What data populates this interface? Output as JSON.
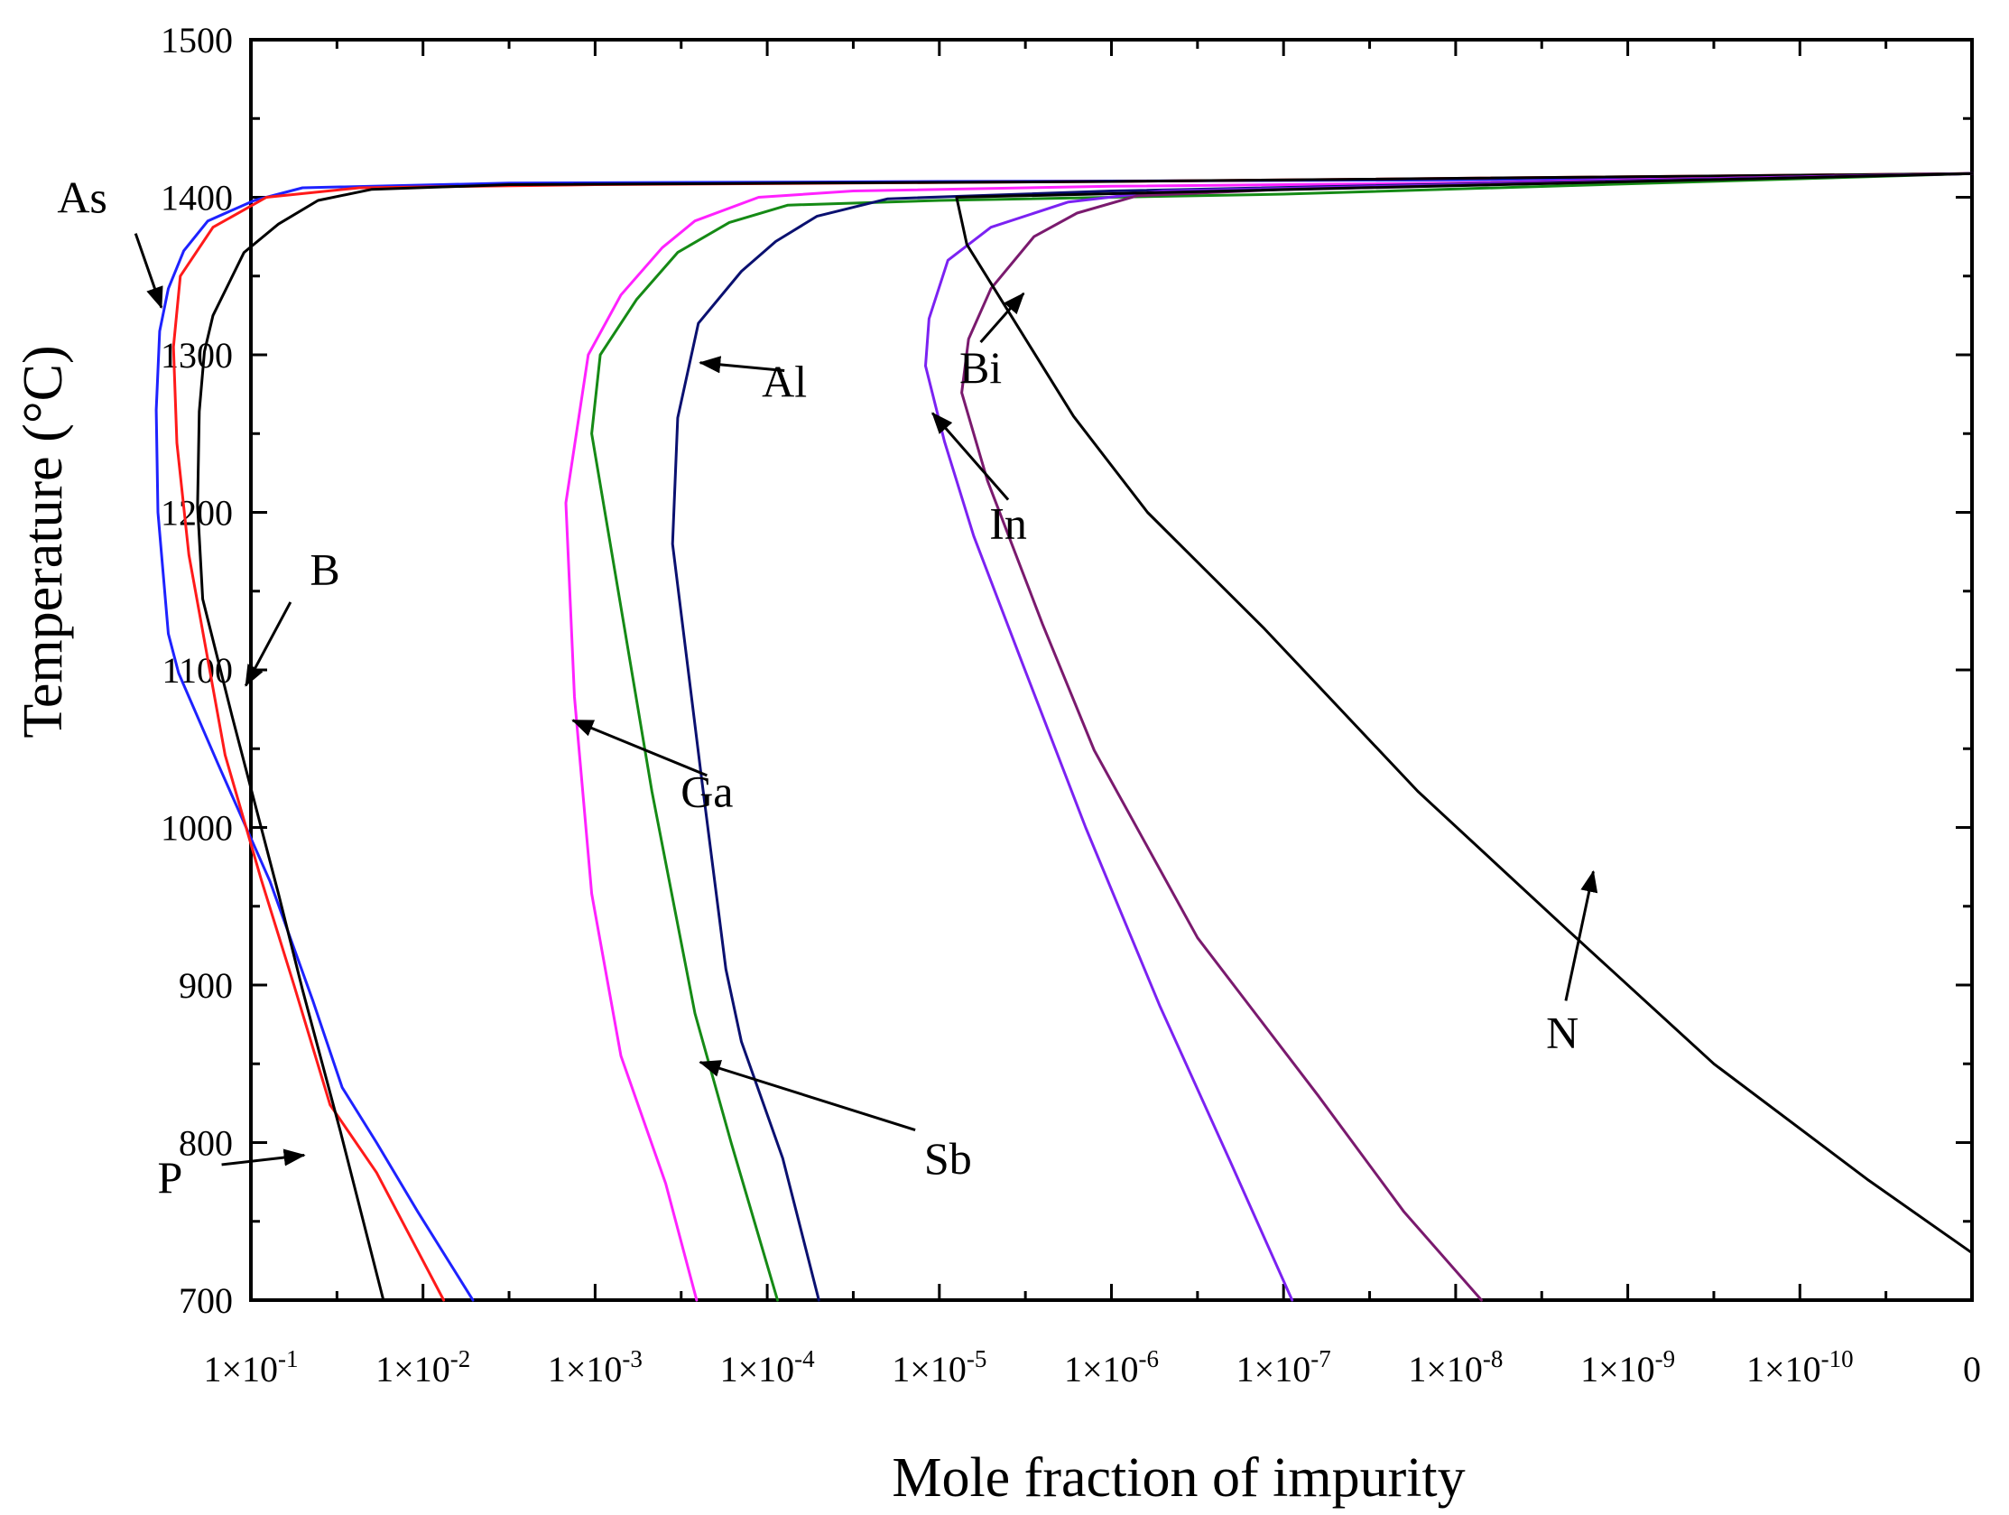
{
  "chart_data": {
    "type": "line",
    "title": "",
    "xlabel": "Mole fraction of impurity",
    "ylabel": "Temperature (°C)",
    "ylim": [
      700,
      1500
    ],
    "y_ticks": [
      700,
      800,
      900,
      1000,
      1100,
      1200,
      1300,
      1400,
      1500
    ],
    "x_scale": "log, reversed (decade index 1 = 1x10^-1 ... 10 = 1x10^-10, 11 = 0)",
    "x_ticks": [
      {
        "pos": 1,
        "mant": "1×10",
        "exp": "-1"
      },
      {
        "pos": 2,
        "mant": "1×10",
        "exp": "-2"
      },
      {
        "pos": 3,
        "mant": "1×10",
        "exp": "-3"
      },
      {
        "pos": 4,
        "mant": "1×10",
        "exp": "-4"
      },
      {
        "pos": 5,
        "mant": "1×10",
        "exp": "-5"
      },
      {
        "pos": 6,
        "mant": "1×10",
        "exp": "-6"
      },
      {
        "pos": 7,
        "mant": "1×10",
        "exp": "-7"
      },
      {
        "pos": 8,
        "mant": "1×10",
        "exp": "-8"
      },
      {
        "pos": 9,
        "mant": "1×10",
        "exp": "-9"
      },
      {
        "pos": 10,
        "mant": "1×10",
        "exp": "-10"
      },
      {
        "pos": 11,
        "mant": "0",
        "exp": ""
      }
    ],
    "series": [
      {
        "name": "As",
        "color": "#1e22ff",
        "points": [
          [
            2.29,
            700
          ],
          [
            1.97,
            756
          ],
          [
            1.73,
            800
          ],
          [
            1.53,
            835
          ],
          [
            1.36,
            890
          ],
          [
            1.11,
            966
          ],
          [
            0.81,
            1040
          ],
          [
            0.58,
            1098
          ],
          [
            0.52,
            1123
          ],
          [
            0.46,
            1200
          ],
          [
            0.45,
            1265
          ],
          [
            0.47,
            1315
          ],
          [
            0.52,
            1342
          ],
          [
            0.61,
            1366
          ],
          [
            0.75,
            1385
          ],
          [
            1.02,
            1398
          ],
          [
            1.3,
            1406
          ],
          [
            2.5,
            1409
          ],
          [
            5.0,
            1410
          ],
          [
            8.0,
            1411
          ],
          [
            11.0,
            1415
          ]
        ]
      },
      {
        "name": "B",
        "color": "#ff1a1a",
        "points": [
          [
            2.12,
            700
          ],
          [
            1.73,
            781
          ],
          [
            1.46,
            824
          ],
          [
            1.25,
            900
          ],
          [
            1.06,
            967
          ],
          [
            0.85,
            1046
          ],
          [
            0.64,
            1173
          ],
          [
            0.57,
            1244
          ],
          [
            0.55,
            1305
          ],
          [
            0.59,
            1350
          ],
          [
            0.78,
            1381
          ],
          [
            1.09,
            1400
          ],
          [
            1.63,
            1406
          ],
          [
            3.0,
            1408
          ],
          [
            6.0,
            1410
          ],
          [
            11.0,
            1415
          ]
        ]
      },
      {
        "name": "P",
        "color": "#000000",
        "points": [
          [
            1.77,
            700
          ],
          [
            1.52,
            807
          ],
          [
            1.3,
            897
          ],
          [
            1.16,
            958
          ],
          [
            0.89,
            1071
          ],
          [
            0.72,
            1145
          ],
          [
            0.69,
            1204
          ],
          [
            0.7,
            1264
          ],
          [
            0.73,
            1302
          ],
          [
            0.78,
            1325
          ],
          [
            0.96,
            1365
          ],
          [
            1.16,
            1383
          ],
          [
            1.39,
            1398
          ],
          [
            1.7,
            1405
          ],
          [
            2.5,
            1408
          ],
          [
            6.0,
            1410
          ],
          [
            11.0,
            1415
          ]
        ]
      },
      {
        "name": "Ga",
        "color": "#ff22ff",
        "points": [
          [
            3.59,
            700
          ],
          [
            3.41,
            774
          ],
          [
            3.15,
            855
          ],
          [
            2.98,
            958
          ],
          [
            2.88,
            1083
          ],
          [
            2.83,
            1206
          ],
          [
            2.96,
            1300
          ],
          [
            3.15,
            1338
          ],
          [
            3.39,
            1368
          ],
          [
            3.58,
            1385
          ],
          [
            3.95,
            1400
          ],
          [
            4.5,
            1404
          ],
          [
            6.0,
            1407
          ],
          [
            8.0,
            1409
          ],
          [
            11.0,
            1415
          ]
        ]
      },
      {
        "name": "Sb",
        "color": "#158a15",
        "points": [
          [
            4.06,
            700
          ],
          [
            3.79,
            800
          ],
          [
            3.58,
            882
          ],
          [
            3.33,
            1023
          ],
          [
            3.17,
            1127
          ],
          [
            2.98,
            1250
          ],
          [
            3.03,
            1300
          ],
          [
            3.24,
            1335
          ],
          [
            3.48,
            1365
          ],
          [
            3.78,
            1384
          ],
          [
            4.12,
            1395
          ],
          [
            5.0,
            1398
          ],
          [
            7.0,
            1402
          ],
          [
            11.0,
            1415
          ]
        ]
      },
      {
        "name": "Al",
        "color": "#0a1070",
        "points": [
          [
            4.3,
            700
          ],
          [
            4.09,
            790
          ],
          [
            3.85,
            864
          ],
          [
            3.76,
            910
          ],
          [
            3.62,
            1030
          ],
          [
            3.45,
            1180
          ],
          [
            3.48,
            1260
          ],
          [
            3.6,
            1320
          ],
          [
            3.85,
            1353
          ],
          [
            4.05,
            1372
          ],
          [
            4.29,
            1388
          ],
          [
            4.7,
            1399
          ],
          [
            6.0,
            1404
          ],
          [
            11.0,
            1415
          ]
        ]
      },
      {
        "name": "In",
        "color": "#7b22f2",
        "points": [
          [
            7.05,
            700
          ],
          [
            6.69,
            788
          ],
          [
            6.28,
            887
          ],
          [
            5.85,
            1000
          ],
          [
            5.48,
            1105
          ],
          [
            5.2,
            1185
          ],
          [
            5.03,
            1245
          ],
          [
            4.92,
            1293
          ],
          [
            4.94,
            1323
          ],
          [
            5.05,
            1360
          ],
          [
            5.3,
            1381
          ],
          [
            5.75,
            1397
          ],
          [
            6.3,
            1404
          ],
          [
            11.0,
            1415
          ]
        ]
      },
      {
        "name": "Bi",
        "color": "#7a1a6e",
        "points": [
          [
            8.15,
            700
          ],
          [
            7.7,
            756
          ],
          [
            7.2,
            830
          ],
          [
            6.5,
            930
          ],
          [
            5.9,
            1049
          ],
          [
            5.6,
            1129
          ],
          [
            5.28,
            1220
          ],
          [
            5.13,
            1276
          ],
          [
            5.17,
            1310
          ],
          [
            5.3,
            1342
          ],
          [
            5.55,
            1375
          ],
          [
            5.8,
            1390
          ],
          [
            6.15,
            1401
          ],
          [
            7.0,
            1405
          ],
          [
            11.0,
            1415
          ]
        ]
      },
      {
        "name": "N",
        "color": "#000000",
        "points": [
          [
            11.0,
            730
          ],
          [
            10.4,
            776
          ],
          [
            9.5,
            850
          ],
          [
            8.64,
            936
          ],
          [
            7.78,
            1023
          ],
          [
            6.89,
            1126
          ],
          [
            6.21,
            1200
          ],
          [
            5.78,
            1261
          ],
          [
            5.49,
            1312
          ],
          [
            5.16,
            1370
          ],
          [
            5.1,
            1400
          ],
          [
            11.0,
            1415
          ]
        ]
      }
    ],
    "annotations": [
      {
        "name": "As",
        "text": "As",
        "tx": 0.02,
        "ty": 1400,
        "arrow": [
          [
            0.33,
            1377
          ],
          [
            0.48,
            1330
          ]
        ]
      },
      {
        "name": "B",
        "text": "B",
        "tx": 1.43,
        "ty": 1164,
        "arrow": [
          [
            1.23,
            1143
          ],
          [
            0.97,
            1090
          ]
        ]
      },
      {
        "name": "P",
        "text": "P",
        "tx": 0.53,
        "ty": 778,
        "arrow": [
          [
            0.83,
            786
          ],
          [
            1.31,
            792
          ]
        ]
      },
      {
        "name": "Ga",
        "text": "Ga",
        "tx": 3.65,
        "ty": 1023,
        "arrow": [
          [
            3.65,
            1033
          ],
          [
            2.87,
            1068
          ]
        ]
      },
      {
        "name": "Sb",
        "text": "Sb",
        "tx": 5.05,
        "ty": 790,
        "arrow": [
          [
            4.86,
            808
          ],
          [
            3.61,
            851
          ]
        ]
      },
      {
        "name": "Al",
        "text": "Al",
        "tx": 4.1,
        "ty": 1283,
        "arrow": [
          [
            4.1,
            1290
          ],
          [
            3.61,
            1295
          ]
        ]
      },
      {
        "name": "In",
        "text": "In",
        "tx": 5.4,
        "ty": 1193,
        "arrow": [
          [
            5.4,
            1208
          ],
          [
            4.96,
            1263
          ]
        ]
      },
      {
        "name": "Bi",
        "text": "Bi",
        "tx": 5.24,
        "ty": 1292,
        "arrow": [
          [
            5.24,
            1308
          ],
          [
            5.49,
            1339
          ]
        ]
      },
      {
        "name": "N",
        "text": "N",
        "tx": 8.62,
        "ty": 870,
        "arrow": [
          [
            8.64,
            890
          ],
          [
            8.8,
            972
          ]
        ]
      }
    ]
  }
}
